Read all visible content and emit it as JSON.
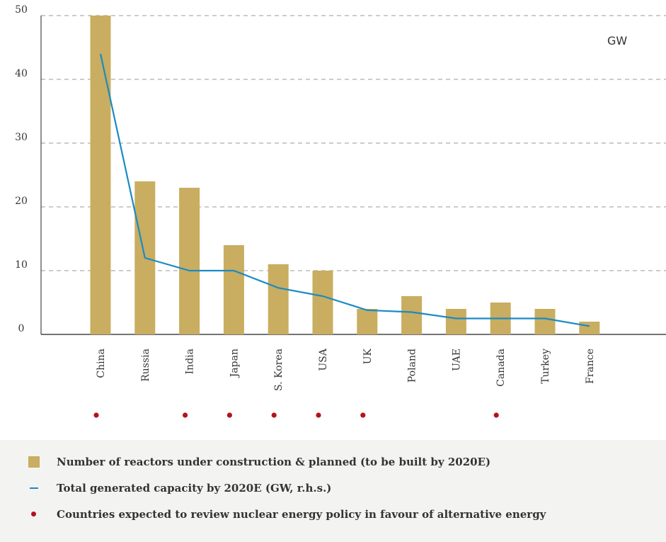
{
  "chart_data": {
    "type": "bar",
    "categories": [
      "China",
      "Russia",
      "India",
      "Japan",
      "S. Korea",
      "USA",
      "UK",
      "Poland",
      "UAE",
      "Canada",
      "Turkey",
      "France"
    ],
    "series": [
      {
        "name": "Number of reactors under construction & planned (to be built by 2020E)",
        "type": "bar",
        "color": "#c9ad60",
        "values": [
          50,
          24,
          23,
          14,
          11,
          10,
          4,
          6,
          4,
          5,
          4,
          2
        ]
      },
      {
        "name": "Total generated capacity by 2020E (GW, r.h.s.)",
        "type": "line",
        "color": "#1a8bc4",
        "values": [
          44,
          12,
          10,
          10,
          7.3,
          6,
          3.8,
          3.5,
          2.5,
          2.5,
          2.5,
          1.3
        ]
      }
    ],
    "policy_review": [
      true,
      false,
      true,
      true,
      true,
      true,
      true,
      false,
      false,
      true,
      false,
      false
    ],
    "policy_review_label": "Countries expected to review nuclear energy policy in favour of alternative energy",
    "policy_color": "#b5121b",
    "y_ticks": [
      "0",
      "10",
      "20",
      "30",
      "40",
      "50"
    ],
    "ylim": [
      0,
      50
    ],
    "unit_label": "GW",
    "grid": true,
    "legend_position": "bottom"
  }
}
